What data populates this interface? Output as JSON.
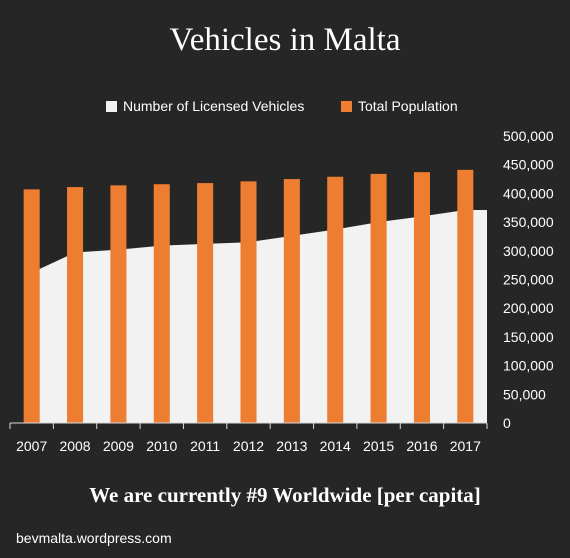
{
  "chart_data": {
    "type": "bar",
    "title": "Vehicles in Malta",
    "categories": [
      "2007",
      "2008",
      "2009",
      "2010",
      "2011",
      "2012",
      "2013",
      "2014",
      "2015",
      "2016",
      "2017"
    ],
    "series": [
      {
        "name": "Number of Licensed Vehicles",
        "type": "area",
        "color": "#f2f2f2",
        "values": [
          262000,
          297000,
          302000,
          309000,
          312000,
          315000,
          326000,
          337000,
          350000,
          360000,
          371000
        ]
      },
      {
        "name": "Total Population",
        "type": "bar",
        "color": "#ed7d31",
        "values": [
          407000,
          411000,
          414000,
          416000,
          418000,
          421000,
          425000,
          429000,
          434000,
          437000,
          441000
        ]
      }
    ],
    "yticks": [
      "0",
      "50,000",
      "100,000",
      "150,000",
      "200,000",
      "250,000",
      "300,000",
      "350,000",
      "400,000",
      "450,000",
      "500,000"
    ],
    "ylim": [
      0,
      500000
    ],
    "legend_position": "top",
    "grid": false
  },
  "subtitle": "We are currently #9 Worldwide [per capita]",
  "footer": "bevmalta.wordpress.com"
}
